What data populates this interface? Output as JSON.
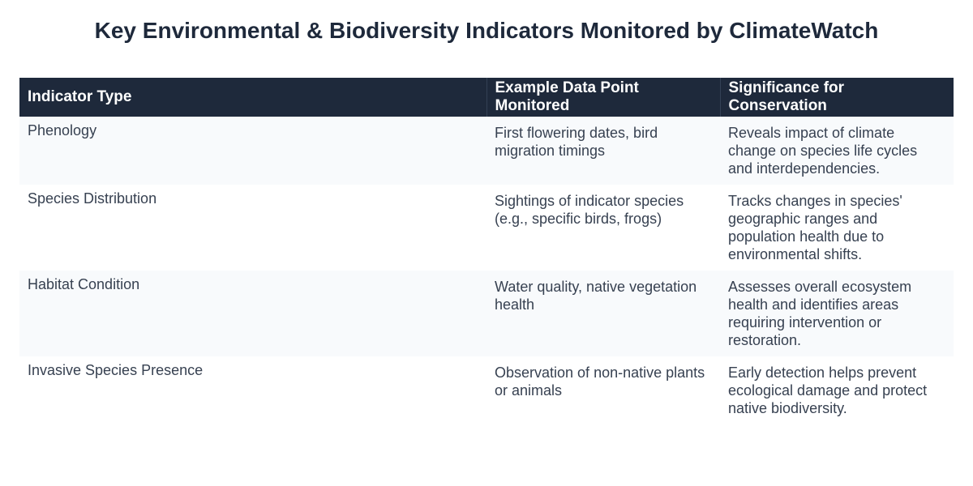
{
  "header": {
    "title": "Key Environmental & Biodiversity Indicators Monitored by ClimateWatch"
  },
  "table": {
    "columns": [
      "Indicator Type",
      "Example Data Point Monitored",
      "Significance for Conservation"
    ],
    "rows": [
      [
        "Phenology",
        "First flowering dates, bird migration timings",
        "Reveals impact of climate change on species life cycles and interdependencies."
      ],
      [
        "Species Distribution",
        "Sightings of indicator species (e.g., specific birds, frogs)",
        "Tracks changes in species' geographic ranges and population health due to environmental shifts."
      ],
      [
        "Habitat Condition",
        "Water quality, native vegetation health",
        "Assesses overall ecosystem health and identifies areas requiring intervention or restoration."
      ],
      [
        "Invasive Species Presence",
        "Observation of non-native plants or animals",
        "Early detection helps prevent ecological damage and protect native biodiversity."
      ]
    ]
  }
}
